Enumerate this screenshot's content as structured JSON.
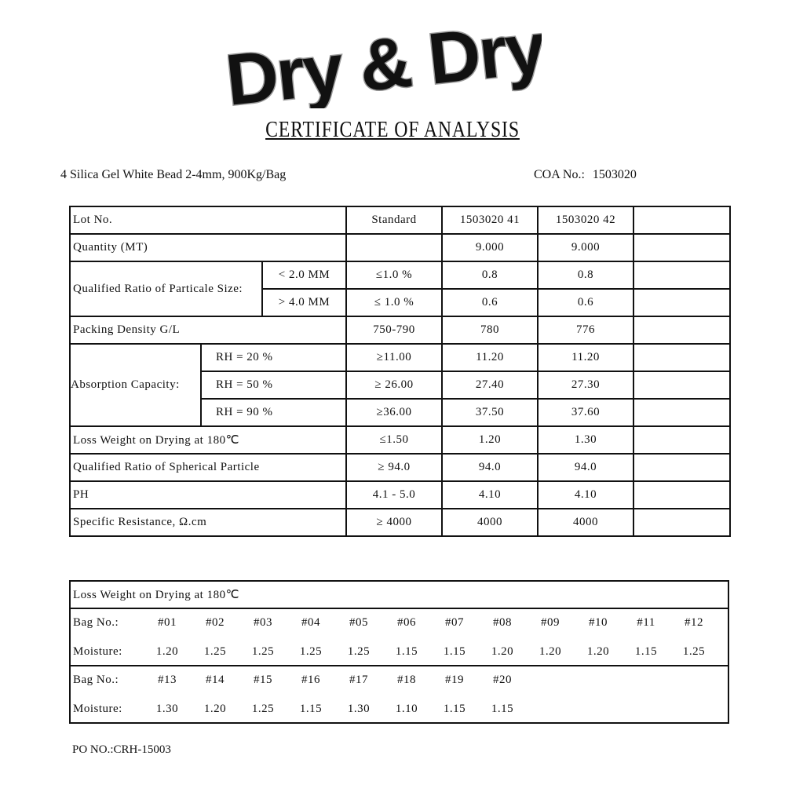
{
  "logo": {
    "text": "Dry & Dry"
  },
  "title": "CERTIFICATE OF ANALYSIS",
  "product": "4 Silica Gel White Bead 2-4mm, 900Kg/Bag",
  "coa": {
    "label": "COA No.:",
    "value": "1503020"
  },
  "spec_table": {
    "lot_label": "Lot No.",
    "standard_label": "Standard",
    "lots": [
      "1503020   41",
      "1503020   42",
      ""
    ],
    "quantity": {
      "label": "Quantity (MT)",
      "standard": "",
      "values": [
        "9.000",
        "9.000",
        ""
      ]
    },
    "particle": {
      "label": "Qualified Ratio of Particale Size:",
      "rows": [
        {
          "sub": "< 2.0  MM",
          "standard": "≤1.0 %",
          "values": [
            "0.8",
            "0.8",
            ""
          ]
        },
        {
          "sub": "> 4.0  MM",
          "standard": "≤ 1.0 %",
          "values": [
            "0.6",
            "0.6",
            ""
          ]
        }
      ]
    },
    "density": {
      "label": "Packing Density G/L",
      "standard": "750-790",
      "values": [
        "780",
        "776",
        ""
      ]
    },
    "absorption": {
      "label": "Absorption Capacity:",
      "rows": [
        {
          "sub": "RH =  20 %",
          "standard": "≥11.00",
          "values": [
            "11.20",
            "11.20",
            ""
          ]
        },
        {
          "sub": "RH =  50 %",
          "standard": "≥ 26.00",
          "values": [
            "27.40",
            "27.30",
            ""
          ]
        },
        {
          "sub": "RH =  90 %",
          "standard": "≥36.00",
          "values": [
            "37.50",
            "37.60",
            ""
          ]
        }
      ]
    },
    "loss": {
      "label": "Loss Weight on Drying at 180℃",
      "standard": "≤1.50",
      "values": [
        "1.20",
        "1.30",
        ""
      ]
    },
    "spherical": {
      "label": "Qualified Ratio of Spherical Particle",
      "standard": "≥ 94.0",
      "values": [
        "94.0",
        "94.0",
        ""
      ]
    },
    "ph": {
      "label": "PH",
      "standard": "4.1 - 5.0",
      "values": [
        "4.10",
        "4.10",
        ""
      ]
    },
    "resistance": {
      "label": "Specific Resistance, Ω.cm",
      "standard": "≥ 4000",
      "values": [
        "4000",
        "4000",
        ""
      ]
    }
  },
  "moisture_table": {
    "title": "Loss Weight on Drying at 180℃",
    "bag_label": "Bag No.:",
    "moisture_label": "Moisture:",
    "groups": [
      {
        "bags": [
          "#01",
          "#02",
          "#03",
          "#04",
          "#05",
          "#06",
          "#07",
          "#08",
          "#09",
          "#10",
          "#11",
          "#12"
        ],
        "moisture": [
          "1.20",
          "1.25",
          "1.25",
          "1.25",
          "1.25",
          "1.15",
          "1.15",
          "1.20",
          "1.20",
          "1.20",
          "1.15",
          "1.25"
        ]
      },
      {
        "bags": [
          "#13",
          "#14",
          "#15",
          "#16",
          "#17",
          "#18",
          "#19",
          "#20"
        ],
        "moisture": [
          "1.30",
          "1.20",
          "1.25",
          "1.15",
          "1.30",
          "1.10",
          "1.15",
          "1.15"
        ]
      }
    ]
  },
  "po": "PO NO.:CRH-15003"
}
